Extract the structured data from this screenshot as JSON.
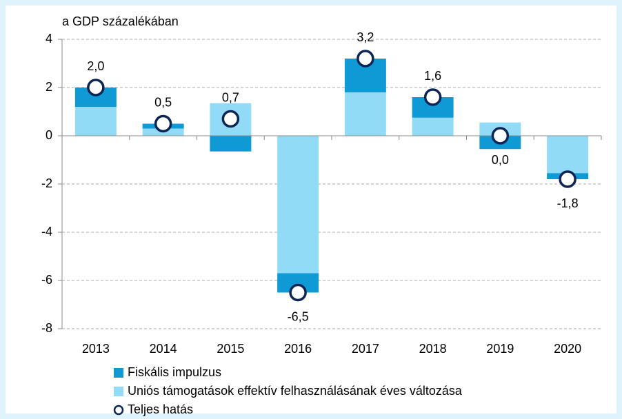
{
  "chart_data": {
    "type": "bar",
    "stacked": true,
    "title": "a GDP százalékában",
    "categories": [
      "2013",
      "2014",
      "2015",
      "2016",
      "2017",
      "2018",
      "2019",
      "2020"
    ],
    "series": [
      {
        "name": "Fiskális impulzus",
        "color": "#0f9ad6",
        "values": [
          0.8,
          0.2,
          -0.65,
          -0.8,
          1.4,
          0.85,
          -0.55,
          -0.25
        ]
      },
      {
        "name": "Uniós támogatások effektív felhasználásának éves változása",
        "color": "#92dbf7",
        "values": [
          1.2,
          0.3,
          1.35,
          -5.7,
          1.8,
          0.75,
          0.55,
          -1.55
        ]
      }
    ],
    "total": {
      "name": "Teljes hatás",
      "type": "scatter",
      "color": "#0c2554",
      "values": [
        2.0,
        0.5,
        0.7,
        -6.5,
        3.2,
        1.6,
        0.0,
        -1.8
      ],
      "value_labels": [
        "2,0",
        "0,5",
        "0,7",
        "-6,5",
        "3,2",
        "1,6",
        "0,0",
        "-1,8"
      ]
    },
    "ylim": [
      -8,
      4
    ],
    "yticks": [
      -8,
      -6,
      -4,
      -2,
      0,
      2,
      4
    ],
    "grid": true,
    "legend": "bottom"
  }
}
